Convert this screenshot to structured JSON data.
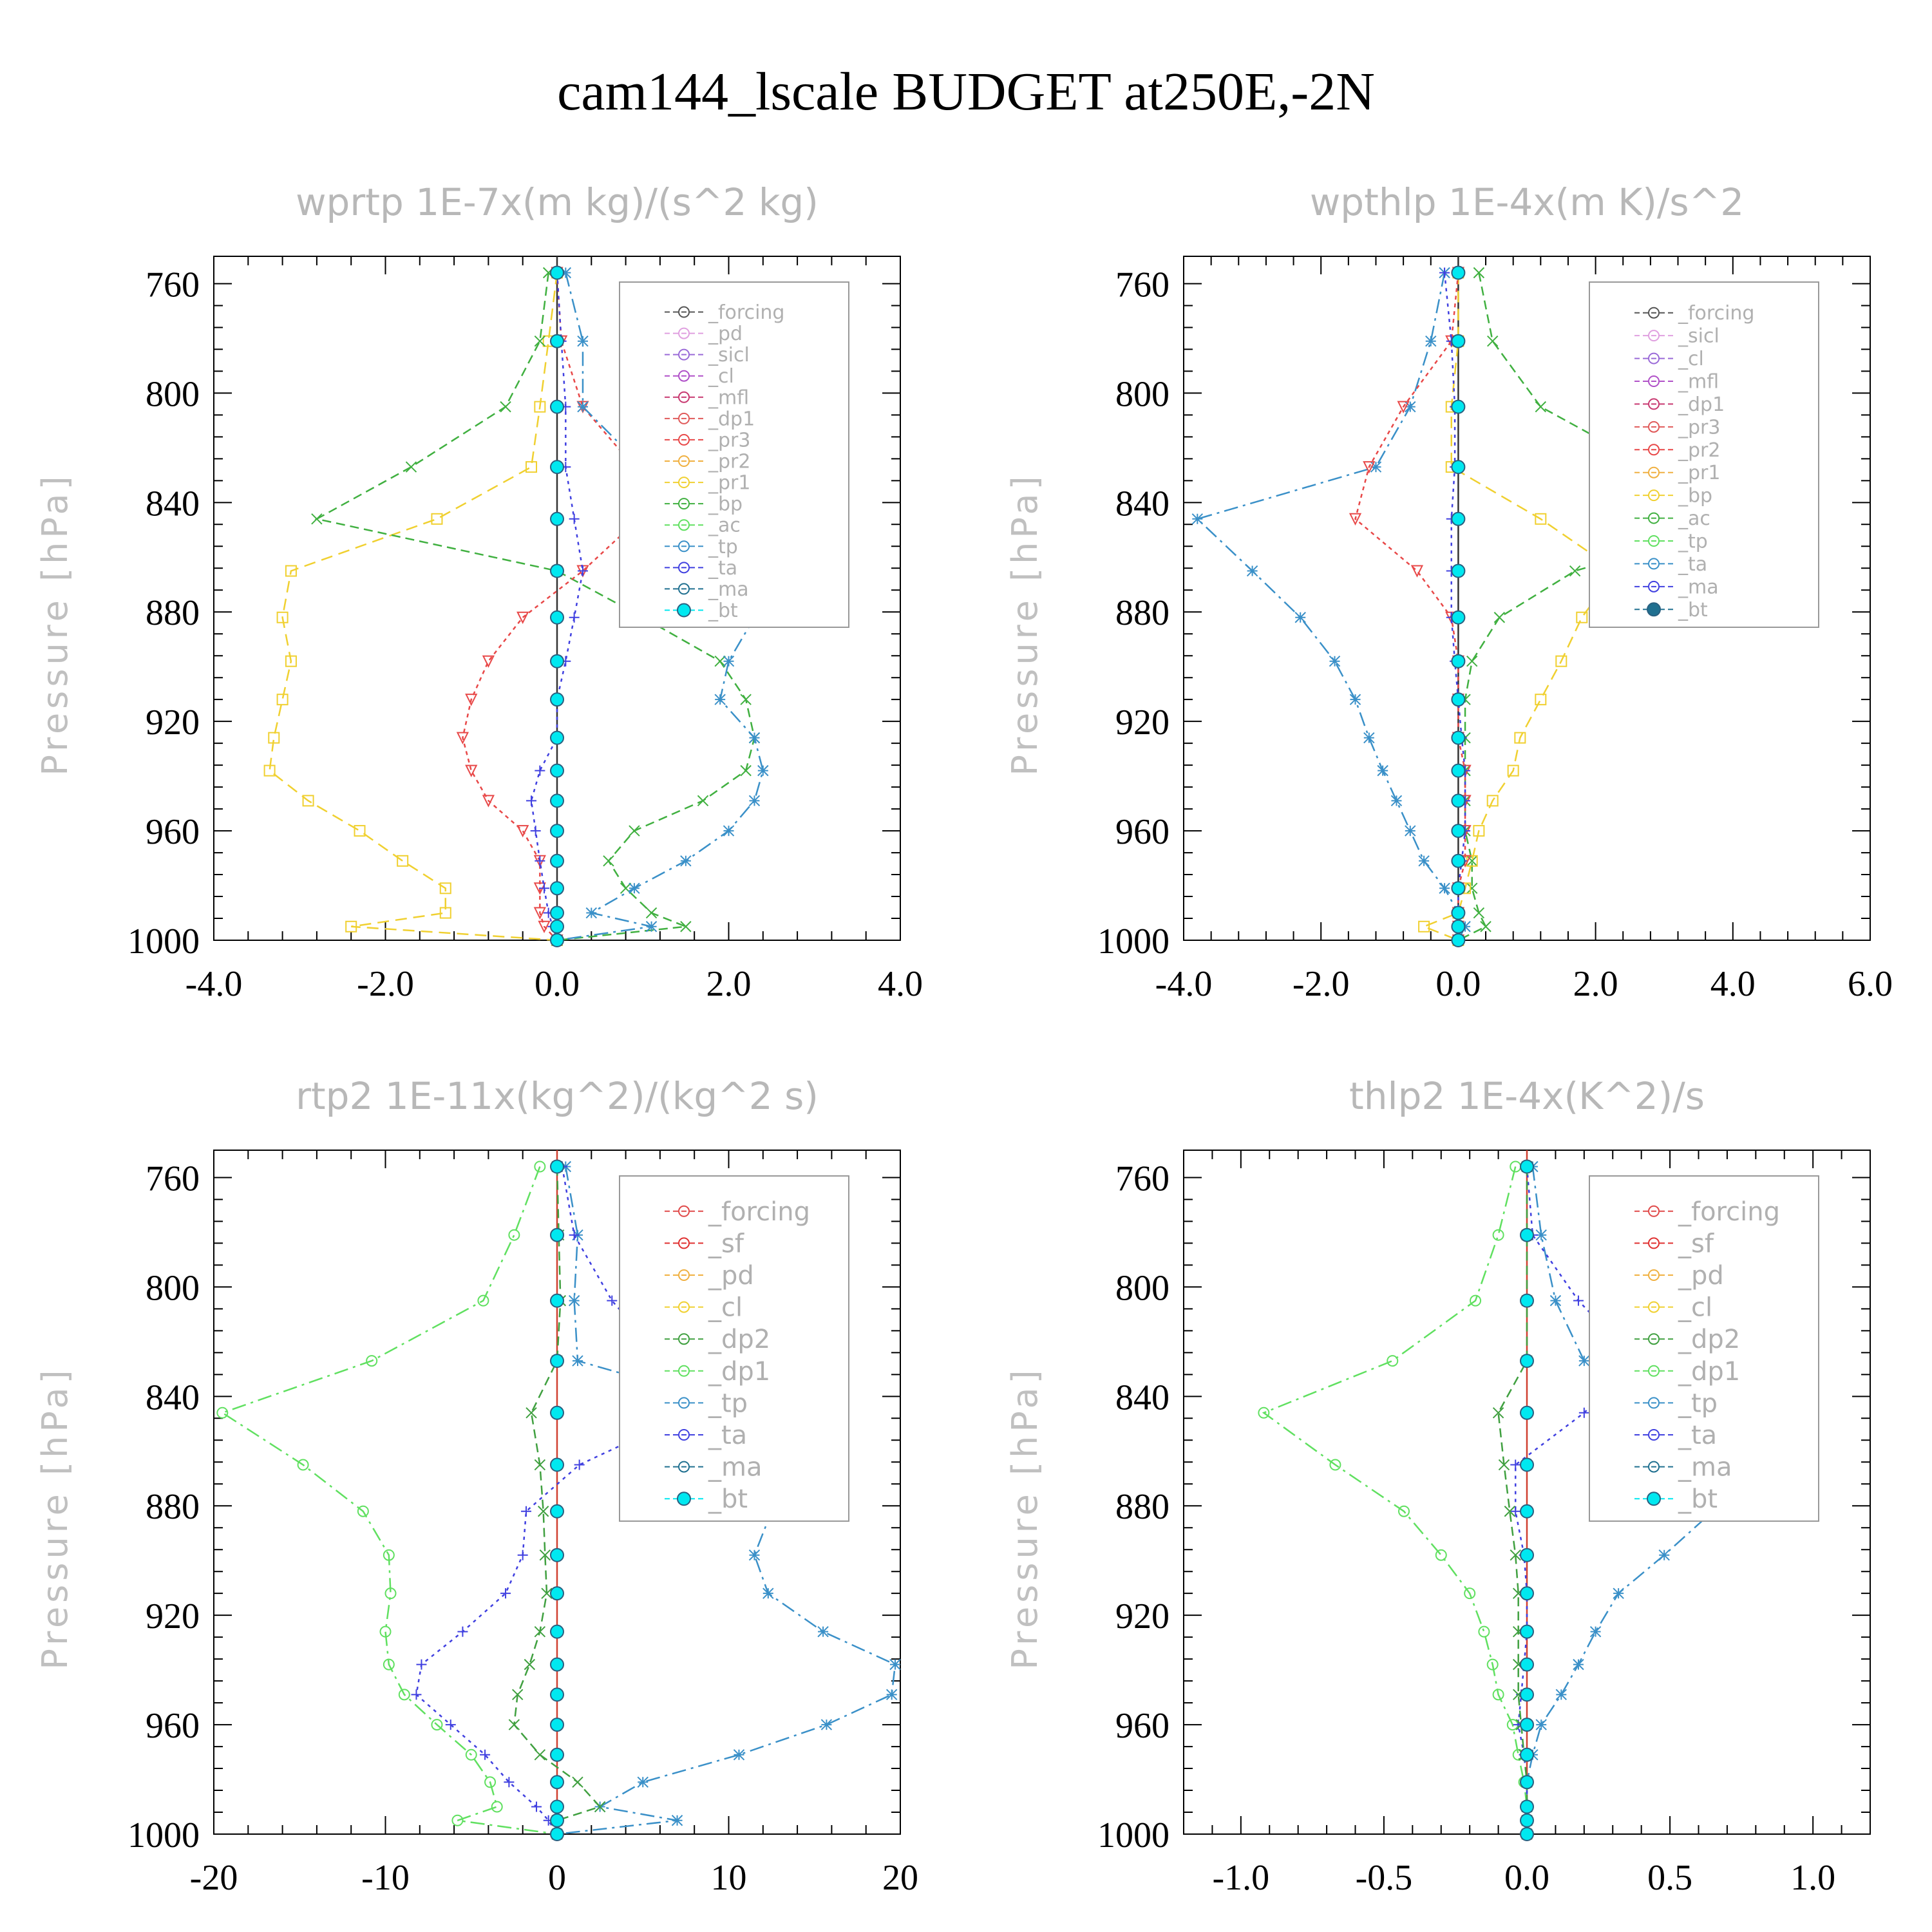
{
  "title": "cam144_lscale  BUDGET at250E,-2N",
  "ylabel": "Pressure [hPa]",
  "colors": {
    "forcing_black": "#333333",
    "forcing_red": "#e04a4a",
    "pd": "#e0a0e0",
    "sicl": "#9a6ad8",
    "cl": "#b050c8",
    "mfl": "#c83870",
    "dp1": "#e05a5a",
    "pr3": "#e84848",
    "pr2": "#f0b040",
    "pr1": "#f0d030",
    "bp": "#40b040",
    "ac": "#60e060",
    "tp": "#3a90c8",
    "ta": "#4040e0",
    "ma": "#207090",
    "bt": "#00e8f0",
    "sf": "#e03030",
    "dp2": "#40a040",
    "cl2": "#f0d030"
  },
  "chart_data": [
    {
      "type": "line",
      "title": "wprtp   1E-7x(m kg)/(s^2 kg)",
      "xlim": [
        -4.0,
        4.0
      ],
      "ylim": [
        1000,
        750
      ],
      "xticks": [
        "-4.0",
        "-2.0",
        "0.0",
        "2.0",
        "4.0"
      ],
      "yticks": [
        "760",
        "800",
        "840",
        "880",
        "920",
        "960",
        "1000"
      ],
      "legend": [
        "_forcing",
        "_pd",
        "_sicl",
        "_cl",
        "_mfl",
        "_dp1",
        "_pr3",
        "_pr2",
        "_pr1",
        "_bp",
        "_ac",
        "_tp",
        "_ta",
        "_ma",
        "_bt"
      ],
      "levels": [
        756,
        781,
        805,
        827,
        846,
        865,
        882,
        898,
        912,
        926,
        938,
        949,
        960,
        971,
        981,
        990,
        995,
        1000
      ],
      "series": [
        {
          "name": "_pr1",
          "color": "pr1",
          "values": [
            0.0,
            -0.1,
            -0.2,
            -0.3,
            -1.4,
            -3.1,
            -3.2,
            -3.1,
            -3.2,
            -3.3,
            -3.35,
            -2.9,
            -2.3,
            -1.8,
            -1.3,
            -1.3,
            -2.4,
            0.0
          ]
        },
        {
          "name": "_bp",
          "color": "bp",
          "values": [
            -0.1,
            -0.2,
            -0.6,
            -1.7,
            -2.8,
            0.0,
            1.0,
            1.9,
            2.2,
            2.3,
            2.2,
            1.7,
            0.9,
            0.6,
            0.8,
            1.1,
            1.5,
            0.0
          ]
        },
        {
          "name": "_pr3",
          "color": "pr3",
          "values": [
            0.0,
            0.05,
            0.3,
            0.9,
            0.95,
            0.3,
            -0.4,
            -0.8,
            -1.0,
            -1.1,
            -1.0,
            -0.8,
            -0.4,
            -0.2,
            -0.2,
            -0.2,
            -0.15,
            0.0
          ]
        },
        {
          "name": "_tp",
          "color": "tp",
          "values": [
            0.1,
            0.3,
            0.3,
            1.0,
            3.0,
            2.6,
            2.3,
            2.0,
            1.9,
            2.3,
            2.4,
            2.3,
            2.0,
            1.5,
            0.9,
            0.4,
            1.1,
            0.0
          ]
        },
        {
          "name": "_ta",
          "color": "ta",
          "values": [
            0.0,
            0.05,
            0.1,
            0.1,
            0.2,
            0.3,
            0.2,
            0.1,
            0.0,
            0.0,
            -0.2,
            -0.3,
            -0.25,
            -0.2,
            -0.15,
            -0.1,
            -0.05,
            0.0
          ]
        },
        {
          "name": "_bt",
          "color": "bt",
          "values": [
            0.0,
            0.0,
            0.0,
            0.0,
            0.0,
            0.0,
            0.0,
            0.0,
            0.0,
            0.0,
            0.0,
            0.0,
            0.0,
            0.0,
            0.0,
            0.0,
            0.0,
            0.0
          ]
        }
      ]
    },
    {
      "type": "line",
      "title": "wpthlp   1E-4x(m K)/s^2",
      "xlim": [
        -4.0,
        6.0
      ],
      "ylim": [
        1000,
        750
      ],
      "xticks": [
        "-4.0",
        "-2.0",
        "0.0",
        "2.0",
        "4.0",
        "6.0"
      ],
      "yticks": [
        "760",
        "800",
        "840",
        "880",
        "920",
        "960",
        "1000"
      ],
      "legend": [
        "_forcing",
        "_sicl",
        "_cl",
        "_mfl",
        "_dp1",
        "_pr3",
        "_pr2",
        "_pr1",
        "_bp",
        "_ac",
        "_tp",
        "_ta",
        "_ma",
        "_bt"
      ],
      "levels": [
        756,
        781,
        805,
        827,
        846,
        865,
        882,
        898,
        912,
        926,
        938,
        949,
        960,
        971,
        981,
        990,
        995,
        1000
      ],
      "series": [
        {
          "name": "_tp",
          "color": "tp",
          "values": [
            -0.2,
            -0.4,
            -0.7,
            -1.2,
            -3.8,
            -3.0,
            -2.3,
            -1.8,
            -1.5,
            -1.3,
            -1.1,
            -0.9,
            -0.7,
            -0.5,
            -0.2,
            0.0,
            0.1,
            0.0
          ]
        },
        {
          "name": "_bp",
          "color": "bp",
          "values": [
            0.3,
            0.5,
            1.2,
            2.8,
            4.3,
            1.7,
            0.6,
            0.2,
            0.1,
            0.1,
            0.1,
            0.1,
            0.1,
            0.2,
            0.2,
            0.3,
            0.4,
            0.0
          ]
        },
        {
          "name": "_pr1",
          "color": "pr1",
          "values": [
            0.0,
            0.0,
            -0.1,
            -0.1,
            1.2,
            2.3,
            1.8,
            1.5,
            1.2,
            0.9,
            0.8,
            0.5,
            0.3,
            0.2,
            0.1,
            0.0,
            -0.5,
            0.0
          ]
        },
        {
          "name": "_pr3",
          "color": "pr3",
          "values": [
            0.0,
            -0.1,
            -0.8,
            -1.3,
            -1.5,
            -0.6,
            -0.1,
            0.0,
            0.0,
            0.0,
            0.1,
            0.1,
            0.1,
            0.1,
            0.0,
            0.0,
            0.0,
            0.0
          ]
        },
        {
          "name": "_ta",
          "color": "ta",
          "values": [
            -0.2,
            -0.1,
            -0.05,
            -0.05,
            -0.1,
            -0.1,
            -0.1,
            -0.05,
            0.0,
            0.05,
            0.1,
            0.1,
            0.1,
            0.05,
            0.0,
            0.0,
            0.0,
            0.0
          ]
        },
        {
          "name": "_bt",
          "color": "bt",
          "values": [
            0.0,
            0.0,
            0.0,
            0.0,
            0.0,
            0.0,
            0.0,
            0.0,
            0.0,
            0.0,
            0.0,
            0.0,
            0.0,
            0.0,
            0.0,
            0.0,
            0.0,
            0.0
          ]
        }
      ]
    },
    {
      "type": "line",
      "title": "rtp2   1E-11x(kg^2)/(kg^2 s)",
      "xlim": [
        -20,
        20
      ],
      "ylim": [
        1000,
        750
      ],
      "xticks": [
        "-20",
        "-10",
        "0",
        "10",
        "20"
      ],
      "yticks": [
        "760",
        "800",
        "840",
        "880",
        "920",
        "960",
        "1000"
      ],
      "legend": [
        "_forcing",
        "_sf",
        "_pd",
        "_cl",
        "_dp2",
        "_dp1",
        "_tp",
        "_ta",
        "_ma",
        "_bt"
      ],
      "levels": [
        756,
        781,
        805,
        827,
        846,
        865,
        882,
        898,
        912,
        926,
        938,
        949,
        960,
        971,
        981,
        990,
        995,
        1000
      ],
      "series": [
        {
          "name": "_dp1",
          "color": "ac",
          "values": [
            -1.0,
            -2.5,
            -4.3,
            -10.8,
            -19.5,
            -14.8,
            -11.3,
            -9.8,
            -9.7,
            -10.0,
            -9.8,
            -8.9,
            -7.0,
            -5.0,
            -3.9,
            -3.5,
            -5.8,
            0.0
          ]
        },
        {
          "name": "_tp",
          "color": "tp",
          "values": [
            0.5,
            1.2,
            1.0,
            1.2,
            11.8,
            13.2,
            12.5,
            11.5,
            12.3,
            15.5,
            19.7,
            19.5,
            15.7,
            10.6,
            5.0,
            2.5,
            7.0,
            0.0
          ]
        },
        {
          "name": "_ta",
          "color": "ta",
          "values": [
            0.3,
            1.0,
            3.2,
            6.2,
            7.8,
            1.3,
            -1.8,
            -2.0,
            -3.0,
            -5.5,
            -7.9,
            -8.2,
            -6.2,
            -4.2,
            -2.8,
            -1.2,
            -0.5,
            0.0
          ]
        },
        {
          "name": "_dp2",
          "color": "dp2",
          "values": [
            0.0,
            0.1,
            0.2,
            0.0,
            -1.5,
            -1.0,
            -0.8,
            -0.7,
            -0.6,
            -1.0,
            -1.6,
            -2.3,
            -2.5,
            -1.0,
            1.2,
            2.5,
            0.0,
            0.0
          ]
        },
        {
          "name": "_bt",
          "color": "bt",
          "values": [
            0.0,
            0.0,
            0.0,
            0.0,
            0.0,
            0.0,
            0.0,
            0.0,
            0.0,
            0.0,
            0.0,
            0.0,
            0.0,
            0.0,
            0.0,
            0.0,
            0.0,
            0.0
          ]
        }
      ]
    },
    {
      "type": "line",
      "title": "thlp2   1E-4x(K^2)/s",
      "xlim": [
        -1.2,
        1.2
      ],
      "ylim": [
        1000,
        750
      ],
      "xticks": [
        "-1.0",
        "-0.5",
        "0.0",
        "0.5",
        "1.0"
      ],
      "yticks": [
        "760",
        "800",
        "840",
        "880",
        "920",
        "960",
        "1000"
      ],
      "legend": [
        "_forcing",
        "_sf",
        "_pd",
        "_cl",
        "_dp2",
        "_dp1",
        "_tp",
        "_ta",
        "_ma",
        "_bt"
      ],
      "levels": [
        756,
        781,
        805,
        827,
        846,
        865,
        882,
        898,
        912,
        926,
        938,
        949,
        960,
        971,
        981,
        990,
        995,
        1000
      ],
      "series": [
        {
          "name": "_dp1",
          "color": "ac",
          "values": [
            -0.04,
            -0.1,
            -0.18,
            -0.47,
            -0.92,
            -0.67,
            -0.43,
            -0.3,
            -0.2,
            -0.15,
            -0.12,
            -0.1,
            -0.05,
            -0.03,
            -0.01,
            0.0,
            0.0,
            0.0
          ]
        },
        {
          "name": "_tp",
          "color": "tp",
          "values": [
            0.02,
            0.05,
            0.1,
            0.2,
            0.88,
            0.95,
            0.65,
            0.48,
            0.32,
            0.24,
            0.18,
            0.12,
            0.05,
            0.02,
            0.0,
            0.0,
            0.0,
            0.0
          ]
        },
        {
          "name": "_ta",
          "color": "ta",
          "values": [
            0.0,
            0.02,
            0.18,
            0.38,
            0.2,
            -0.04,
            -0.04,
            -0.01,
            0.0,
            0.0,
            -0.01,
            -0.02,
            -0.03,
            -0.01,
            0.0,
            0.0,
            0.0,
            0.0
          ]
        },
        {
          "name": "_dp2",
          "color": "dp2",
          "values": [
            0.0,
            0.0,
            0.0,
            0.0,
            -0.1,
            -0.08,
            -0.06,
            -0.04,
            -0.03,
            -0.03,
            -0.03,
            -0.03,
            -0.02,
            -0.01,
            0.0,
            0.0,
            0.0,
            0.0
          ]
        },
        {
          "name": "_bt",
          "color": "bt",
          "values": [
            0.0,
            0.0,
            0.0,
            0.0,
            0.0,
            0.0,
            0.0,
            0.0,
            0.0,
            0.0,
            0.0,
            0.0,
            0.0,
            0.0,
            0.0,
            0.0,
            0.0,
            0.0
          ]
        }
      ]
    }
  ]
}
